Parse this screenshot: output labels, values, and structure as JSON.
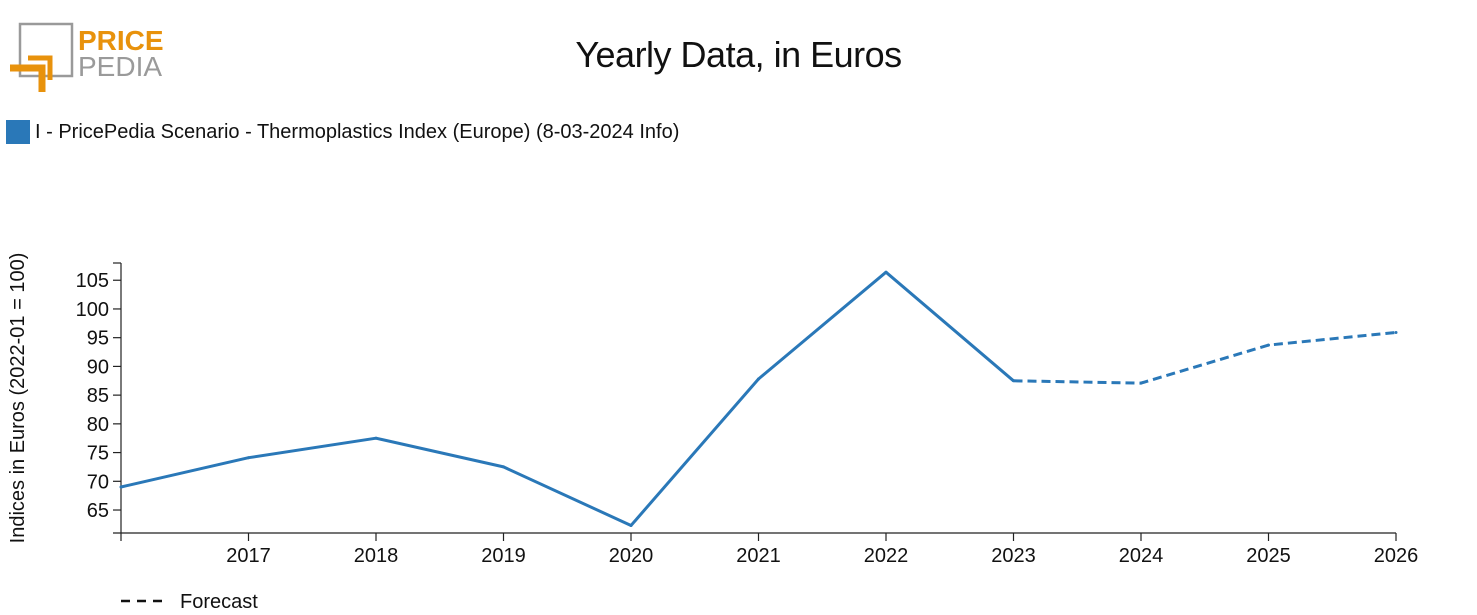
{
  "logo": {
    "line1": "PRICE",
    "line2": "PEDIA"
  },
  "colors": {
    "series": "#2a78b8",
    "logo_orange": "#e8920c",
    "logo_gray": "#9a9a9a"
  },
  "chart_data": {
    "type": "line",
    "title": "Yearly Data, in Euros",
    "ylabel": "Indices in Euros (2022-01 = 100)",
    "xlabel": "",
    "ylim": [
      61,
      108
    ],
    "xlim": [
      2016,
      2026
    ],
    "yticks": [
      65,
      70,
      75,
      80,
      85,
      90,
      95,
      100,
      105
    ],
    "xticks": [
      2017,
      2018,
      2019,
      2020,
      2021,
      2022,
      2023,
      2024,
      2025,
      2026
    ],
    "grid": false,
    "legend_position": "top-left",
    "series": [
      {
        "name": "I - PricePedia Scenario - Thermoplastics Index (Europe) (8-03-2024 Info)",
        "x": [
          2016,
          2017,
          2018,
          2019,
          2020,
          2021,
          2022,
          2023,
          2024,
          2025,
          2026
        ],
        "values": [
          69.0,
          74.1,
          77.5,
          72.5,
          62.3,
          87.8,
          106.4,
          87.5,
          87.1,
          93.7,
          95.9
        ],
        "forecast_from": 2023
      }
    ],
    "forecast_legend": "Forecast"
  }
}
